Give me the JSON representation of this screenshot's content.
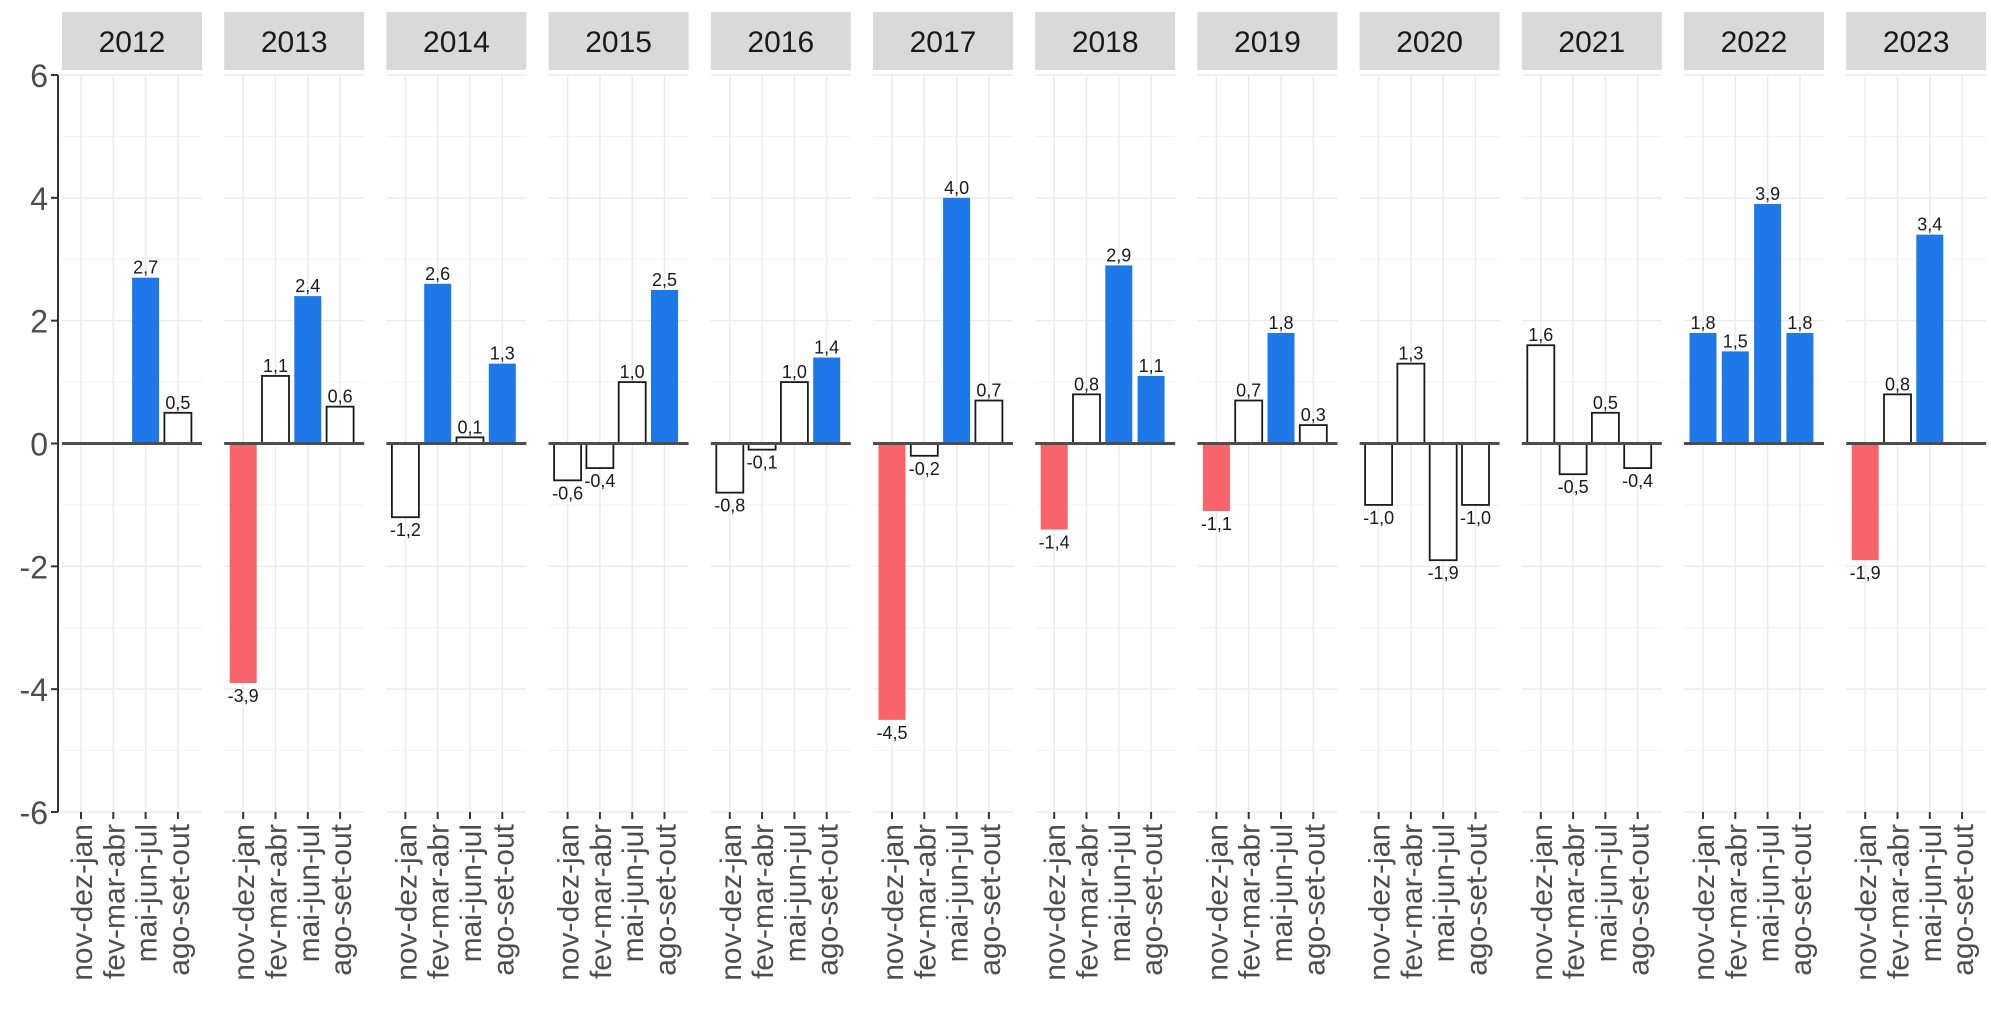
{
  "chart_data": {
    "type": "bar",
    "facet_by": "year",
    "years": [
      "2012",
      "2013",
      "2014",
      "2015",
      "2016",
      "2017",
      "2018",
      "2019",
      "2020",
      "2021",
      "2022",
      "2023"
    ],
    "categories": [
      "nov-dez-jan",
      "fev-mar-abr",
      "mai-jun-jul",
      "ago-set-out"
    ],
    "values": [
      [
        null,
        null,
        2.7,
        0.5
      ],
      [
        -3.9,
        1.1,
        2.4,
        0.6
      ],
      [
        -1.2,
        2.6,
        0.1,
        1.3
      ],
      [
        -0.6,
        -0.4,
        1.0,
        2.5
      ],
      [
        -0.8,
        -0.1,
        1.0,
        1.4
      ],
      [
        -4.5,
        -0.2,
        4.0,
        0.7
      ],
      [
        -1.4,
        0.8,
        2.9,
        1.1
      ],
      [
        -1.1,
        0.7,
        1.8,
        0.3
      ],
      [
        -1.0,
        1.3,
        -1.9,
        -1.0
      ],
      [
        1.6,
        -0.5,
        0.5,
        -0.4
      ],
      [
        1.8,
        1.5,
        3.9,
        1.8
      ],
      [
        -1.9,
        0.8,
        3.4,
        null
      ]
    ],
    "value_labels": [
      [
        "",
        "",
        "2,7",
        "0,5"
      ],
      [
        "-3,9",
        "1,1",
        "2,4",
        "0,6"
      ],
      [
        "-1,2",
        "2,6",
        "0,1",
        "1,3"
      ],
      [
        "-0,6",
        "-0,4",
        "1,0",
        "2,5"
      ],
      [
        "-0,8",
        "-0,1",
        "1,0",
        "1,4"
      ],
      [
        "-4,5",
        "-0,2",
        "4,0",
        "0,7"
      ],
      [
        "-1,4",
        "0,8",
        "2,9",
        "1,1"
      ],
      [
        "-1,1",
        "0,7",
        "1,8",
        "0,3"
      ],
      [
        "-1,0",
        "1,3",
        "-1,9",
        "-1,0"
      ],
      [
        "1,6",
        "-0,5",
        "0,5",
        "-0,4"
      ],
      [
        "1,8",
        "1,5",
        "3,9",
        "1,8"
      ],
      [
        "-1,9",
        "0,8",
        "3,4",
        ""
      ]
    ],
    "bar_fill": [
      [
        null,
        null,
        "blue",
        "white"
      ],
      [
        "red",
        "white",
        "blue",
        "white"
      ],
      [
        "white",
        "blue",
        "white",
        "blue"
      ],
      [
        "white",
        "white",
        "white",
        "blue"
      ],
      [
        "white",
        "white",
        "white",
        "blue"
      ],
      [
        "red",
        "white",
        "blue",
        "white"
      ],
      [
        "red",
        "white",
        "blue",
        "blue"
      ],
      [
        "red",
        "white",
        "blue",
        "white"
      ],
      [
        "white",
        "white",
        "white",
        "white"
      ],
      [
        "white",
        "white",
        "white",
        "white"
      ],
      [
        "blue",
        "blue",
        "blue",
        "blue"
      ],
      [
        "red",
        "white",
        "blue",
        null
      ]
    ],
    "colors": {
      "blue": "#1f78e8",
      "red": "#f8646b",
      "white": "#ffffff",
      "outline": "#1a1a1a",
      "strip": "#d9d9d9",
      "grid": "#ebebeb",
      "zero_line": "#4d4d4d"
    },
    "y_ticks": [
      "6",
      "4",
      "2",
      "0",
      "-2",
      "-4",
      "-6"
    ],
    "ylim": [
      -6,
      6
    ],
    "grid": true,
    "legend": "none",
    "title": "",
    "xlabel": "",
    "ylabel": ""
  }
}
